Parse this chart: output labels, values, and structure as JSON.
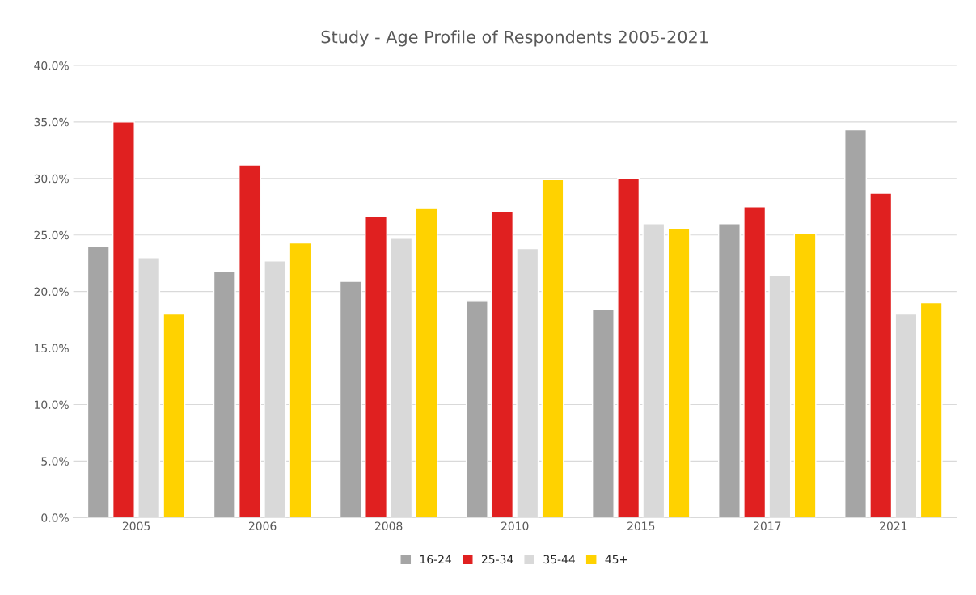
{
  "chart_data": {
    "type": "bar",
    "title": "Study - Age Profile of Respondents 2005-2021",
    "categories": [
      "2005",
      "2006",
      "2008",
      "2010",
      "2015",
      "2017",
      "2021"
    ],
    "series": [
      {
        "name": "16-24",
        "color": "#a5a5a5",
        "values": [
          24.0,
          21.8,
          20.9,
          19.2,
          18.4,
          26.0,
          34.3
        ]
      },
      {
        "name": "25-34",
        "color": "#e02020",
        "values": [
          35.0,
          31.2,
          26.6,
          27.1,
          30.0,
          27.5,
          28.7
        ]
      },
      {
        "name": "35-44",
        "color": "#d9d9d9",
        "values": [
          23.0,
          22.7,
          24.7,
          23.8,
          26.0,
          21.4,
          18.0
        ]
      },
      {
        "name": "45+",
        "color": "#ffd200",
        "values": [
          18.0,
          24.3,
          27.4,
          29.9,
          25.6,
          25.1,
          19.0
        ]
      }
    ],
    "ylim": [
      0,
      40
    ],
    "yticks": [
      {
        "value": 0,
        "label": "0.0%"
      },
      {
        "value": 5,
        "label": "5.0%"
      },
      {
        "value": 10,
        "label": "10.0%"
      },
      {
        "value": 15,
        "label": "15.0%"
      },
      {
        "value": 20,
        "label": "20.0%"
      },
      {
        "value": 25,
        "label": "25.0%"
      },
      {
        "value": 30,
        "label": "30.0%"
      },
      {
        "value": 35,
        "label": "35.0%"
      },
      {
        "value": 40,
        "label": "40.0%"
      }
    ],
    "grid": "y",
    "legend": "bottom"
  }
}
